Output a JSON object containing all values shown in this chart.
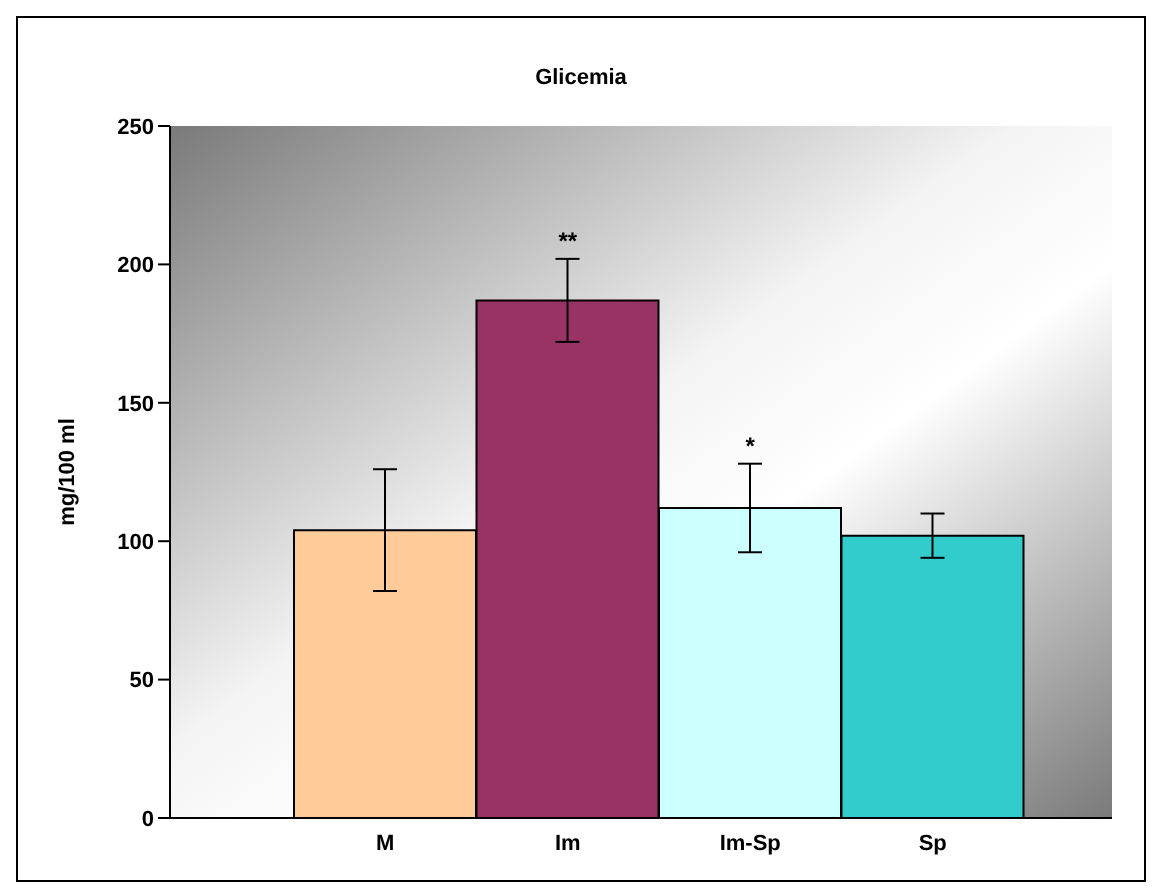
{
  "chart_data": {
    "type": "bar",
    "title": "Glicemia",
    "ylabel": "mg/100 ml",
    "categories": [
      "M",
      "Im",
      "Im-Sp",
      "Sp"
    ],
    "values": [
      104,
      187,
      112,
      102
    ],
    "colors": [
      "#ffcc99",
      "#993366",
      "#ccffff",
      "#33cccc"
    ],
    "errors": [
      22,
      15,
      16,
      8
    ],
    "ylim": [
      0,
      250
    ],
    "yticks": [
      0,
      50,
      100,
      150,
      200,
      250
    ],
    "grid": false,
    "annotations": [
      {
        "text": "**",
        "x": "Im",
        "y": 202
      },
      {
        "text": "*",
        "x": "Im-Sp",
        "y": 128
      }
    ]
  }
}
